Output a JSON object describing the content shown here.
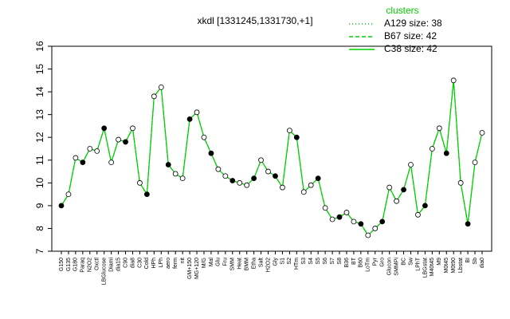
{
  "chart_data": {
    "type": "line",
    "title": "xkdl [1331245,1331730,+1]",
    "legend_title": "clusters",
    "legend": "top-right",
    "categories": [
      "G150",
      "G135",
      "G180",
      "Paraq",
      "N2O2",
      "Oxctl",
      "LBGlucose",
      "Diami",
      "dia15",
      "C90",
      "dia8",
      "C30",
      "Cold",
      "HPh",
      "LPh",
      "aero",
      "ferm",
      "nit",
      "GM+150",
      "MG+120",
      "M/G",
      "Mal",
      "Glu",
      "Fru",
      "SMM",
      "Heat",
      "BMM",
      "Etha",
      "Salt",
      "H2O2",
      "Gly",
      "S1",
      "S2",
      "HTm",
      "S3",
      "S4",
      "S5",
      "S6",
      "S7",
      "S8",
      "B36",
      "BT",
      "B60",
      "LoTm",
      "Pyr",
      "Gro",
      "Glucon",
      "SMMPi",
      "BC",
      "Sw",
      "LPhT",
      "LBGstat",
      "M40t45",
      "M9",
      "M0t45",
      "M0t90",
      "Lbstat",
      "BI",
      "Sb",
      "dia0"
    ],
    "ylim": [
      7,
      16
    ],
    "yticks": [
      7,
      8,
      9,
      10,
      11,
      12,
      13,
      14,
      15,
      16
    ],
    "series": [
      {
        "name": "A129 size: 38",
        "color": "#00cd00",
        "linestyle": "dotted",
        "values": [
          9.0,
          9.5,
          11.1,
          10.9,
          11.5,
          11.4,
          12.4,
          10.9,
          11.9,
          11.8,
          12.4,
          10.0,
          9.5,
          13.8,
          14.2,
          10.8,
          10.4,
          10.2,
          12.8,
          13.1,
          12.0,
          11.3,
          10.6,
          10.3,
          10.1,
          10.0,
          9.9,
          10.2,
          11.0,
          10.5,
          10.3,
          9.8,
          12.3,
          12.0,
          9.6,
          9.9,
          10.2,
          8.9,
          8.4,
          8.5,
          8.7,
          8.3,
          8.2,
          7.7,
          8.0,
          8.3,
          9.8,
          9.2,
          9.7,
          10.8,
          8.6,
          9.0,
          11.5,
          12.4,
          11.3,
          14.5,
          10.0,
          8.2,
          10.9,
          12.2
        ]
      },
      {
        "name": "B67 size: 42",
        "color": "#00cd00",
        "linestyle": "dashed",
        "values": [
          9.0,
          9.5,
          11.1,
          10.9,
          11.5,
          11.4,
          12.4,
          10.9,
          11.9,
          11.8,
          12.4,
          10.0,
          9.5,
          13.8,
          14.2,
          10.8,
          10.4,
          10.2,
          12.8,
          13.1,
          12.0,
          11.3,
          10.6,
          10.3,
          10.1,
          10.0,
          9.9,
          10.2,
          11.0,
          10.5,
          10.3,
          9.8,
          12.3,
          12.0,
          9.6,
          9.9,
          10.2,
          8.9,
          8.4,
          8.5,
          8.7,
          8.3,
          8.2,
          7.7,
          8.0,
          8.3,
          9.8,
          9.2,
          9.7,
          10.8,
          8.6,
          9.0,
          11.5,
          12.4,
          11.3,
          14.5,
          10.0,
          8.2,
          10.9,
          12.2
        ]
      },
      {
        "name": "C38 size: 42",
        "color": "#00cd00",
        "linestyle": "solid",
        "values": [
          9.0,
          9.5,
          11.1,
          10.9,
          11.5,
          11.4,
          12.4,
          10.9,
          11.9,
          11.8,
          12.4,
          10.0,
          9.5,
          13.8,
          14.2,
          10.8,
          10.4,
          10.2,
          12.8,
          13.1,
          12.0,
          11.3,
          10.6,
          10.3,
          10.1,
          10.0,
          9.9,
          10.2,
          11.0,
          10.5,
          10.3,
          9.8,
          12.3,
          12.0,
          9.6,
          9.9,
          10.2,
          8.9,
          8.4,
          8.5,
          8.7,
          8.3,
          8.2,
          7.7,
          8.0,
          8.3,
          9.8,
          9.2,
          9.7,
          10.8,
          8.6,
          9.0,
          11.5,
          12.4,
          11.3,
          14.5,
          10.0,
          8.2,
          10.9,
          12.2
        ]
      }
    ]
  }
}
